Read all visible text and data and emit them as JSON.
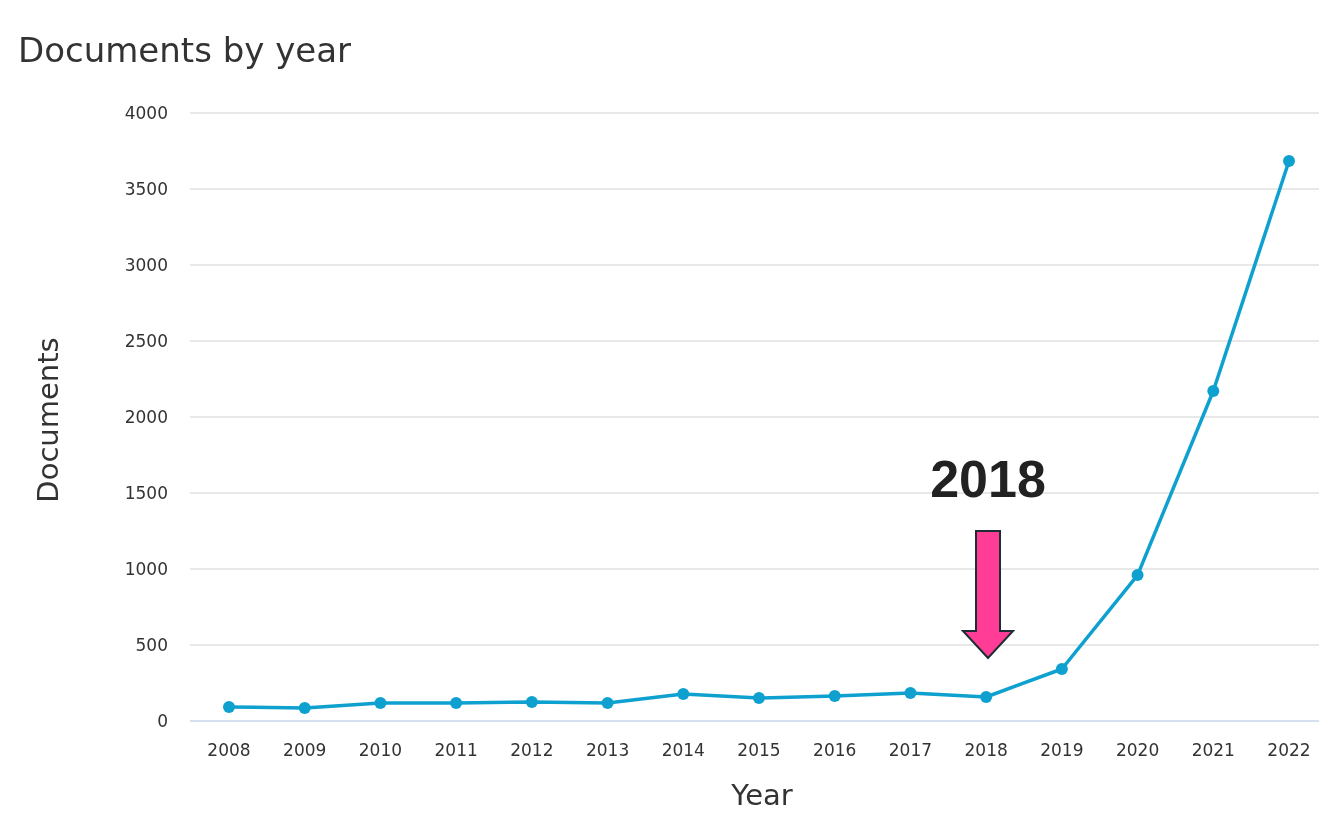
{
  "chart_data": {
    "type": "line",
    "title": "Documents by year",
    "xlabel": "Year",
    "ylabel": "Documents",
    "categories": [
      "2008",
      "2009",
      "2010",
      "2011",
      "2012",
      "2013",
      "2014",
      "2015",
      "2016",
      "2017",
      "2018",
      "2019",
      "2020",
      "2021",
      "2022"
    ],
    "series": [
      {
        "color": "#0ea1d0",
        "values": [
          92,
          86,
          118,
          118,
          125,
          118,
          178,
          151,
          164,
          184,
          158,
          342,
          960,
          2171,
          3684
        ]
      }
    ],
    "ylim": [
      0,
      4000
    ],
    "yticks": [
      0,
      500,
      1000,
      1500,
      2000,
      2500,
      3000,
      3500,
      4000
    ],
    "grid": "y",
    "marker": "circle",
    "line_style": "solid",
    "annotations": [
      "2018"
    ]
  }
}
